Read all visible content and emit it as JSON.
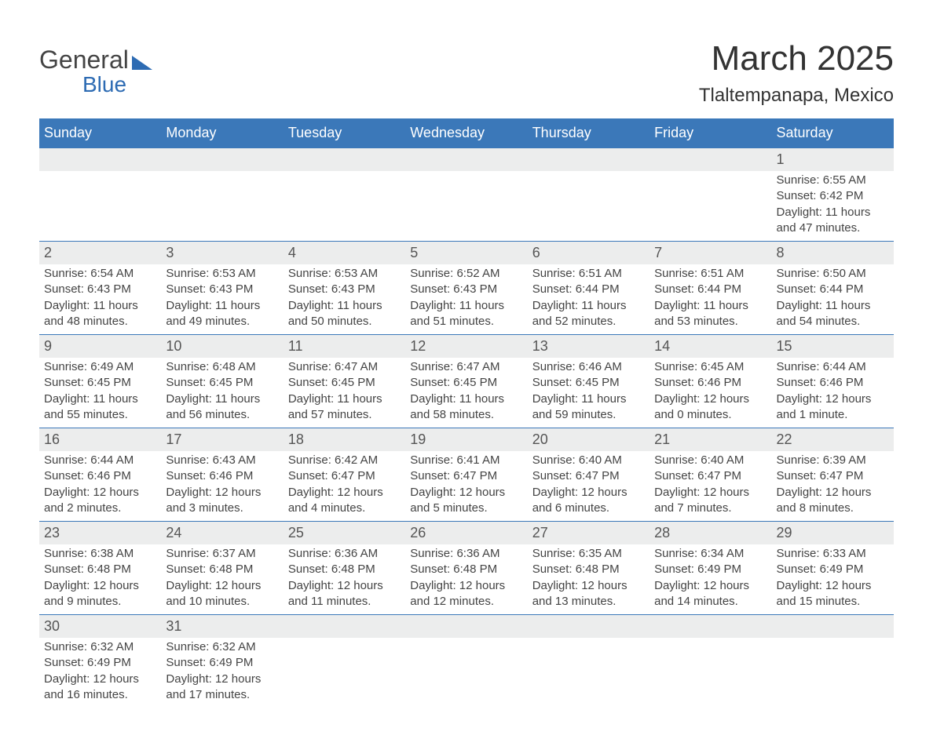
{
  "logo": {
    "text1": "General",
    "text2": "Blue",
    "accent_color": "#2d6bb3"
  },
  "title": "March 2025",
  "location": "Tlaltempanapa, Mexico",
  "header_bg": "#3b78b9",
  "daynum_bg": "#eceded",
  "weekdays": [
    "Sunday",
    "Monday",
    "Tuesday",
    "Wednesday",
    "Thursday",
    "Friday",
    "Saturday"
  ],
  "weeks": [
    [
      null,
      null,
      null,
      null,
      null,
      null,
      {
        "n": "1",
        "sr": "Sunrise: 6:55 AM",
        "ss": "Sunset: 6:42 PM",
        "dl": "Daylight: 11 hours and 47 minutes."
      }
    ],
    [
      {
        "n": "2",
        "sr": "Sunrise: 6:54 AM",
        "ss": "Sunset: 6:43 PM",
        "dl": "Daylight: 11 hours and 48 minutes."
      },
      {
        "n": "3",
        "sr": "Sunrise: 6:53 AM",
        "ss": "Sunset: 6:43 PM",
        "dl": "Daylight: 11 hours and 49 minutes."
      },
      {
        "n": "4",
        "sr": "Sunrise: 6:53 AM",
        "ss": "Sunset: 6:43 PM",
        "dl": "Daylight: 11 hours and 50 minutes."
      },
      {
        "n": "5",
        "sr": "Sunrise: 6:52 AM",
        "ss": "Sunset: 6:43 PM",
        "dl": "Daylight: 11 hours and 51 minutes."
      },
      {
        "n": "6",
        "sr": "Sunrise: 6:51 AM",
        "ss": "Sunset: 6:44 PM",
        "dl": "Daylight: 11 hours and 52 minutes."
      },
      {
        "n": "7",
        "sr": "Sunrise: 6:51 AM",
        "ss": "Sunset: 6:44 PM",
        "dl": "Daylight: 11 hours and 53 minutes."
      },
      {
        "n": "8",
        "sr": "Sunrise: 6:50 AM",
        "ss": "Sunset: 6:44 PM",
        "dl": "Daylight: 11 hours and 54 minutes."
      }
    ],
    [
      {
        "n": "9",
        "sr": "Sunrise: 6:49 AM",
        "ss": "Sunset: 6:45 PM",
        "dl": "Daylight: 11 hours and 55 minutes."
      },
      {
        "n": "10",
        "sr": "Sunrise: 6:48 AM",
        "ss": "Sunset: 6:45 PM",
        "dl": "Daylight: 11 hours and 56 minutes."
      },
      {
        "n": "11",
        "sr": "Sunrise: 6:47 AM",
        "ss": "Sunset: 6:45 PM",
        "dl": "Daylight: 11 hours and 57 minutes."
      },
      {
        "n": "12",
        "sr": "Sunrise: 6:47 AM",
        "ss": "Sunset: 6:45 PM",
        "dl": "Daylight: 11 hours and 58 minutes."
      },
      {
        "n": "13",
        "sr": "Sunrise: 6:46 AM",
        "ss": "Sunset: 6:45 PM",
        "dl": "Daylight: 11 hours and 59 minutes."
      },
      {
        "n": "14",
        "sr": "Sunrise: 6:45 AM",
        "ss": "Sunset: 6:46 PM",
        "dl": "Daylight: 12 hours and 0 minutes."
      },
      {
        "n": "15",
        "sr": "Sunrise: 6:44 AM",
        "ss": "Sunset: 6:46 PM",
        "dl": "Daylight: 12 hours and 1 minute."
      }
    ],
    [
      {
        "n": "16",
        "sr": "Sunrise: 6:44 AM",
        "ss": "Sunset: 6:46 PM",
        "dl": "Daylight: 12 hours and 2 minutes."
      },
      {
        "n": "17",
        "sr": "Sunrise: 6:43 AM",
        "ss": "Sunset: 6:46 PM",
        "dl": "Daylight: 12 hours and 3 minutes."
      },
      {
        "n": "18",
        "sr": "Sunrise: 6:42 AM",
        "ss": "Sunset: 6:47 PM",
        "dl": "Daylight: 12 hours and 4 minutes."
      },
      {
        "n": "19",
        "sr": "Sunrise: 6:41 AM",
        "ss": "Sunset: 6:47 PM",
        "dl": "Daylight: 12 hours and 5 minutes."
      },
      {
        "n": "20",
        "sr": "Sunrise: 6:40 AM",
        "ss": "Sunset: 6:47 PM",
        "dl": "Daylight: 12 hours and 6 minutes."
      },
      {
        "n": "21",
        "sr": "Sunrise: 6:40 AM",
        "ss": "Sunset: 6:47 PM",
        "dl": "Daylight: 12 hours and 7 minutes."
      },
      {
        "n": "22",
        "sr": "Sunrise: 6:39 AM",
        "ss": "Sunset: 6:47 PM",
        "dl": "Daylight: 12 hours and 8 minutes."
      }
    ],
    [
      {
        "n": "23",
        "sr": "Sunrise: 6:38 AM",
        "ss": "Sunset: 6:48 PM",
        "dl": "Daylight: 12 hours and 9 minutes."
      },
      {
        "n": "24",
        "sr": "Sunrise: 6:37 AM",
        "ss": "Sunset: 6:48 PM",
        "dl": "Daylight: 12 hours and 10 minutes."
      },
      {
        "n": "25",
        "sr": "Sunrise: 6:36 AM",
        "ss": "Sunset: 6:48 PM",
        "dl": "Daylight: 12 hours and 11 minutes."
      },
      {
        "n": "26",
        "sr": "Sunrise: 6:36 AM",
        "ss": "Sunset: 6:48 PM",
        "dl": "Daylight: 12 hours and 12 minutes."
      },
      {
        "n": "27",
        "sr": "Sunrise: 6:35 AM",
        "ss": "Sunset: 6:48 PM",
        "dl": "Daylight: 12 hours and 13 minutes."
      },
      {
        "n": "28",
        "sr": "Sunrise: 6:34 AM",
        "ss": "Sunset: 6:49 PM",
        "dl": "Daylight: 12 hours and 14 minutes."
      },
      {
        "n": "29",
        "sr": "Sunrise: 6:33 AM",
        "ss": "Sunset: 6:49 PM",
        "dl": "Daylight: 12 hours and 15 minutes."
      }
    ],
    [
      {
        "n": "30",
        "sr": "Sunrise: 6:32 AM",
        "ss": "Sunset: 6:49 PM",
        "dl": "Daylight: 12 hours and 16 minutes."
      },
      {
        "n": "31",
        "sr": "Sunrise: 6:32 AM",
        "ss": "Sunset: 6:49 PM",
        "dl": "Daylight: 12 hours and 17 minutes."
      },
      null,
      null,
      null,
      null,
      null
    ]
  ]
}
